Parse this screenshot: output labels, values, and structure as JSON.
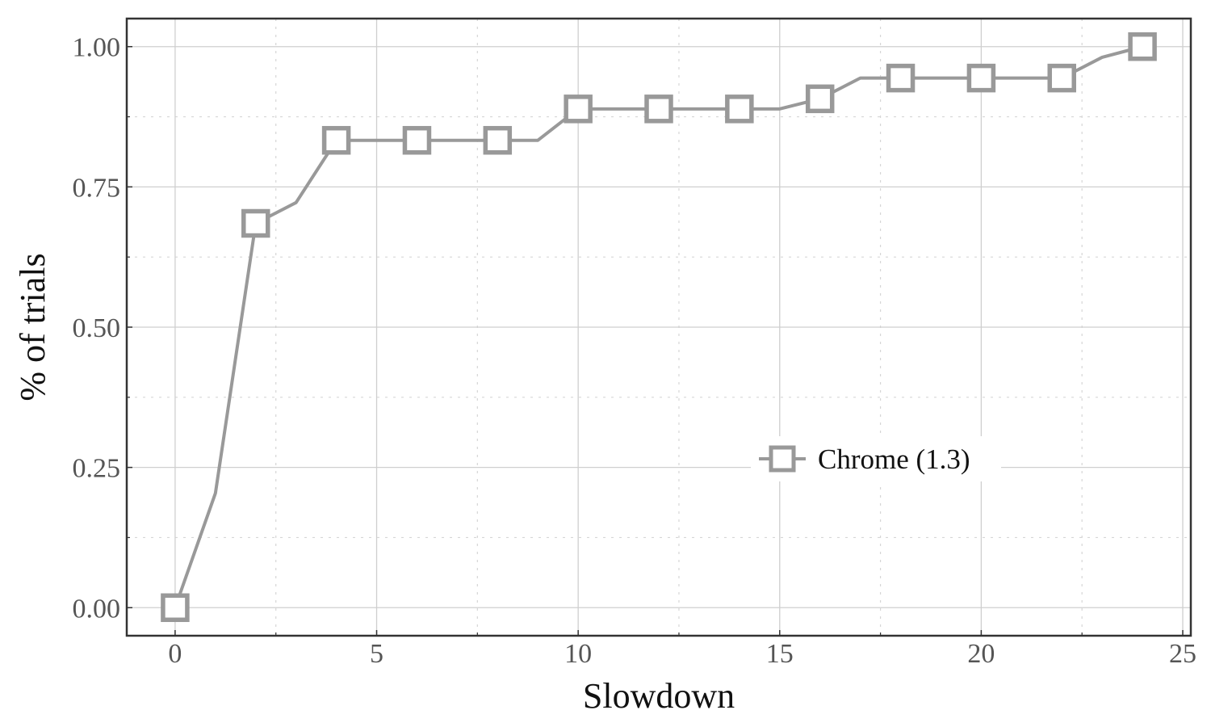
{
  "chart_data": {
    "type": "line",
    "xlabel": "Slowdown",
    "ylabel": "% of trials",
    "xlim": [
      -1.2,
      25.2
    ],
    "ylim": [
      -0.05,
      1.05
    ],
    "x_ticks": [
      0,
      5,
      10,
      15,
      20,
      25
    ],
    "x_minor_ticks": [
      2.5,
      7.5,
      12.5,
      17.5,
      22.5
    ],
    "y_ticks": [
      0.0,
      0.25,
      0.5,
      0.75,
      1.0
    ],
    "y_minor_ticks": [
      0.125,
      0.375,
      0.625,
      0.875
    ],
    "x_tick_labels": [
      "0",
      "5",
      "10",
      "15",
      "20",
      "25"
    ],
    "y_tick_labels": [
      "0.00",
      "0.25",
      "0.50",
      "0.75",
      "1.00"
    ],
    "grid": true,
    "legend_position": "center-right",
    "series": [
      {
        "name": "Chrome (1.3)",
        "color": "#999999",
        "marker": "square",
        "x": [
          0,
          1,
          2,
          3,
          4,
          5,
          6,
          7,
          8,
          9,
          10,
          11,
          12,
          13,
          14,
          15,
          16,
          17,
          18,
          19,
          20,
          21,
          22,
          23,
          24
        ],
        "y": [
          0.0,
          0.204,
          0.685,
          0.722,
          0.833,
          0.833,
          0.833,
          0.833,
          0.833,
          0.833,
          0.889,
          0.889,
          0.889,
          0.889,
          0.889,
          0.889,
          0.907,
          0.944,
          0.944,
          0.944,
          0.944,
          0.944,
          0.944,
          0.981,
          1.0
        ],
        "marker_x": [
          0,
          2,
          4,
          6,
          8,
          10,
          12,
          14,
          16,
          18,
          20,
          22,
          24
        ]
      }
    ]
  }
}
